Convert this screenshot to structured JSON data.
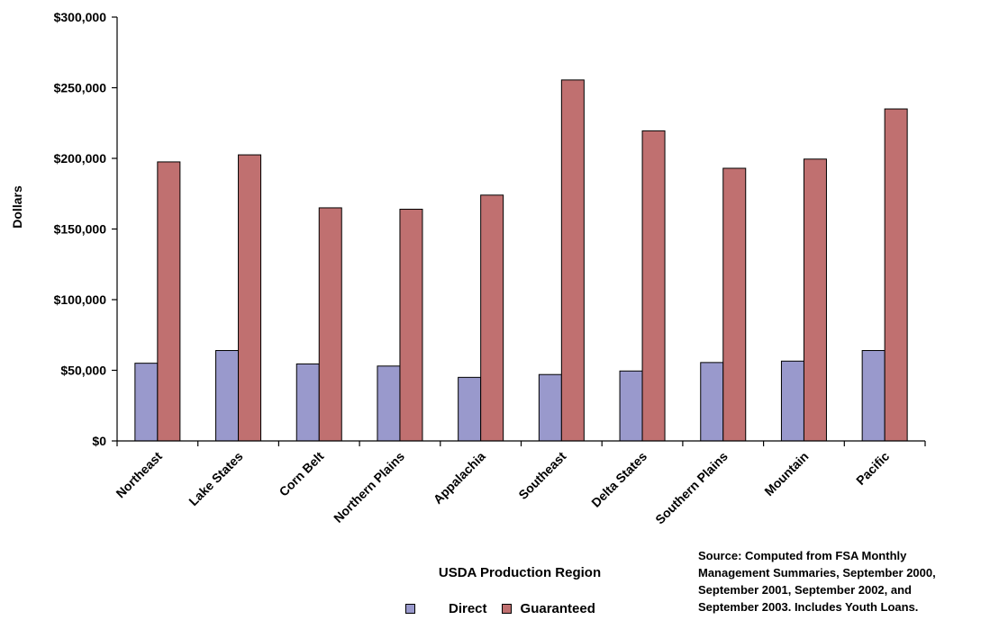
{
  "chart_data": {
    "type": "bar",
    "categories": [
      "Northeast",
      "Lake States",
      "Corn Belt",
      "Northern Plains",
      "Appalachia",
      "Southeast",
      "Delta States",
      "Southern Plains",
      "Mountain",
      "Pacific"
    ],
    "series": [
      {
        "name": "Direct",
        "color": "#9999CC",
        "values": [
          55000,
          64000,
          54500,
          53000,
          45000,
          47000,
          49500,
          55500,
          56500,
          64000
        ]
      },
      {
        "name": "Guaranteed",
        "color": "#C07070",
        "values": [
          197500,
          202500,
          165000,
          164000,
          174000,
          255500,
          219500,
          193000,
          199500,
          235000
        ]
      }
    ],
    "ylim": [
      0,
      300000
    ],
    "yticks": [
      "$0",
      "$50,000",
      "$100,000",
      "$150,000",
      "$200,000",
      "$250,000",
      "$300,000"
    ],
    "ytick_values": [
      0,
      50000,
      100000,
      150000,
      200000,
      250000,
      300000
    ],
    "ylabel": "Dollars",
    "xlabel": "USDA Production Region",
    "grid": false,
    "legend_position": "bottom",
    "source": "Source:  Computed from FSA Monthly\nManagement Summaries, September 2000,\nSeptember 2001, September 2002, and\nSeptember 2003.  Includes Youth Loans."
  }
}
